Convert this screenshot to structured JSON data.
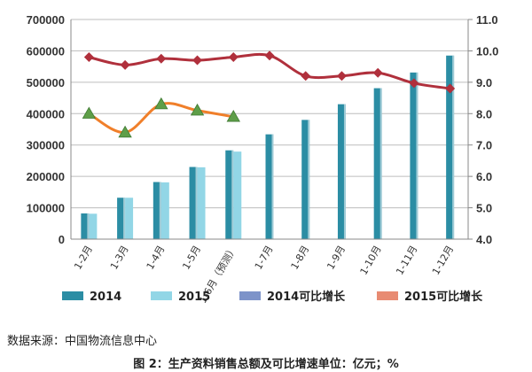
{
  "chart_data": {
    "type": "bar",
    "categories": [
      "1-2月",
      "1-3月",
      "1-4月",
      "1-5月",
      "1-6月（预测）",
      "1-7月",
      "1-8月",
      "1-9月",
      "1-10月",
      "1-11月",
      "1-12月"
    ],
    "series": [
      {
        "name": "2014",
        "type": "bar",
        "axis": "left",
        "values": [
          82000,
          132000,
          182000,
          230000,
          283000,
          334000,
          380000,
          430000,
          481000,
          531000,
          585000
        ]
      },
      {
        "name": "2015",
        "type": "bar",
        "axis": "left",
        "values": [
          81000,
          132000,
          181000,
          229000,
          279000,
          null,
          null,
          null,
          null,
          null,
          null
        ]
      },
      {
        "name": "2014可比增长",
        "type": "line",
        "axis": "right",
        "values": [
          9.8,
          9.55,
          9.75,
          9.7,
          9.8,
          9.85,
          9.2,
          9.2,
          9.3,
          8.97,
          8.8
        ]
      },
      {
        "name": "2015可比增长",
        "type": "line",
        "axis": "right",
        "values": [
          8.0,
          7.4,
          8.3,
          8.1,
          7.9,
          null,
          null,
          null,
          null,
          null,
          null
        ]
      }
    ],
    "y_left": {
      "min": 0,
      "max": 700000,
      "ticks": [
        "0",
        "100000",
        "200000",
        "300000",
        "400000",
        "500000",
        "600000",
        "700000"
      ]
    },
    "y_right": {
      "min": 4.0,
      "max": 11.0,
      "ticks": [
        "4.0",
        "5.0",
        "6.0",
        "7.0",
        "8.0",
        "9.0",
        "10.0",
        "11.0"
      ]
    },
    "grid": true,
    "legend_position": "bottom",
    "colors": {
      "bar2014": "#2b8da4",
      "bar2015": "#92d6e6",
      "line2014": "#b0303c",
      "line2015": "#f07f2a",
      "marker2015": "#5e9e48",
      "legend2014growth": "#7d93c9",
      "legend2015growth": "#e88b72"
    },
    "legend": [
      {
        "label": "2014",
        "color": "#2b8da4"
      },
      {
        "label": "2015",
        "color": "#92d6e6"
      },
      {
        "label": "2014可比增长",
        "color": "#7d93c9"
      },
      {
        "label": "2015可比增长",
        "color": "#e88b72"
      }
    ]
  },
  "source": "数据来源：中国物流信息中心",
  "caption": "图 2：生产资料销售总额及可比增速单位：亿元；%"
}
